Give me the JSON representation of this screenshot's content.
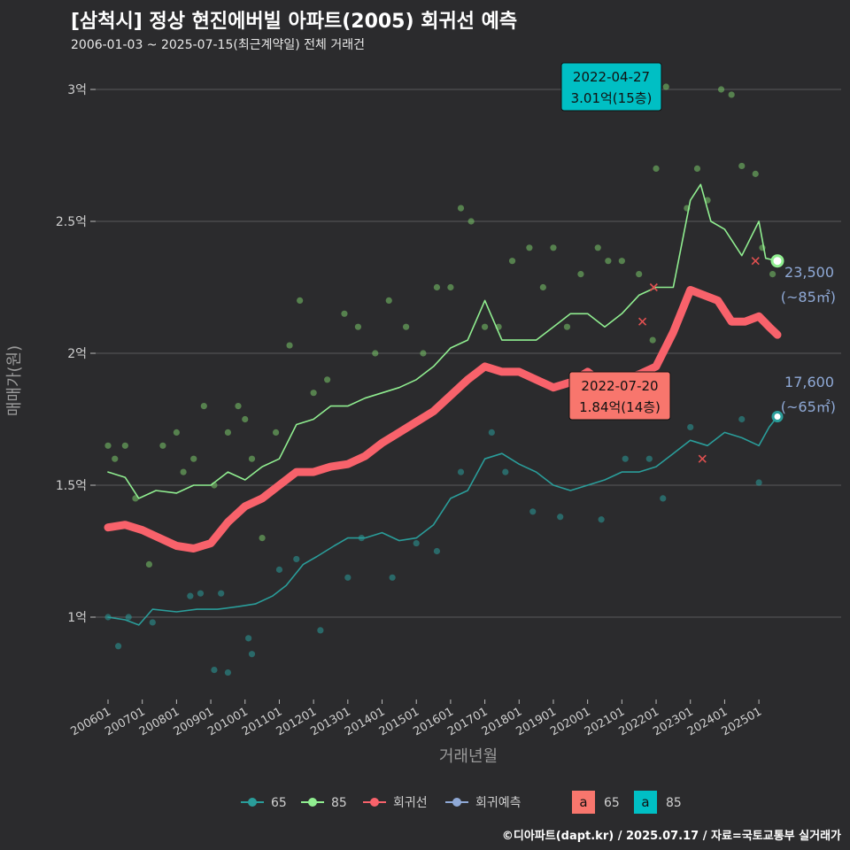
{
  "title": "[삼척시] 정상 현진에버빌 아파트(2005) 회귀선 예측",
  "subtitle": "2006-01-03 ~ 2025-07-15(최근계약일) 전체 거래건",
  "credit": "©디아파트(dapt.kr) / 2025.07.17 / 자료=국토교통부 실거래가",
  "colors": {
    "background": "#2b2b2d",
    "grid": "#5a5a5c",
    "text": "#cfcfcf",
    "teal": "#2a9d9a",
    "green": "#90ee90",
    "green_point": "#7ac86a",
    "red": "#f8626b",
    "blue": "#8fa9d6",
    "cyan_label": "#00bfc4",
    "salmon_label": "#f8766d"
  },
  "chart_data": {
    "type": "line",
    "xlabel": "거래년월",
    "ylabel": "매매가(원)",
    "x_range": [
      "2006-01",
      "2025-07"
    ],
    "ylim": [
      0.75,
      3.1
    ],
    "x_ticks": [
      "200601",
      "200701",
      "200801",
      "200901",
      "201001",
      "201101",
      "201201",
      "201301",
      "201401",
      "201501",
      "201601",
      "201701",
      "201801",
      "201901",
      "202001",
      "202101",
      "202201",
      "202301",
      "202401",
      "202501"
    ],
    "y_ticks": [
      {
        "value": 1,
        "label": "1억"
      },
      {
        "value": 1.5,
        "label": "1.5억"
      },
      {
        "value": 2,
        "label": "2억"
      },
      {
        "value": 2.5,
        "label": "2.5억"
      },
      {
        "value": 3,
        "label": "3억"
      }
    ],
    "grid": true,
    "series": [
      {
        "name": "65",
        "color": "#2a9d9a",
        "points": [
          [
            2006.0,
            1.0
          ],
          [
            2006.5,
            0.99
          ],
          [
            2006.9,
            0.97
          ],
          [
            2007.3,
            1.03
          ],
          [
            2008.0,
            1.02
          ],
          [
            2008.6,
            1.03
          ],
          [
            2009.2,
            1.03
          ],
          [
            2009.8,
            1.04
          ],
          [
            2010.3,
            1.05
          ],
          [
            2010.8,
            1.08
          ],
          [
            2011.2,
            1.12
          ],
          [
            2011.7,
            1.2
          ],
          [
            2012.1,
            1.23
          ],
          [
            2012.6,
            1.27
          ],
          [
            2013.0,
            1.3
          ],
          [
            2013.5,
            1.3
          ],
          [
            2014.0,
            1.32
          ],
          [
            2014.5,
            1.29
          ],
          [
            2015.0,
            1.3
          ],
          [
            2015.5,
            1.35
          ],
          [
            2016.0,
            1.45
          ],
          [
            2016.5,
            1.48
          ],
          [
            2017.0,
            1.6
          ],
          [
            2017.5,
            1.62
          ],
          [
            2018.0,
            1.58
          ],
          [
            2018.5,
            1.55
          ],
          [
            2019.0,
            1.5
          ],
          [
            2019.5,
            1.48
          ],
          [
            2020.0,
            1.5
          ],
          [
            2020.5,
            1.52
          ],
          [
            2021.0,
            1.55
          ],
          [
            2021.5,
            1.55
          ],
          [
            2022.0,
            1.57
          ],
          [
            2022.5,
            1.62
          ],
          [
            2023.0,
            1.67
          ],
          [
            2023.5,
            1.65
          ],
          [
            2024.0,
            1.7
          ],
          [
            2024.5,
            1.68
          ],
          [
            2025.0,
            1.65
          ],
          [
            2025.3,
            1.72
          ],
          [
            2025.54,
            1.76
          ]
        ]
      },
      {
        "name": "85",
        "color": "#90ee90",
        "points": [
          [
            2006.0,
            1.55
          ],
          [
            2006.5,
            1.53
          ],
          [
            2006.9,
            1.45
          ],
          [
            2007.4,
            1.48
          ],
          [
            2008.0,
            1.47
          ],
          [
            2008.5,
            1.5
          ],
          [
            2009.0,
            1.5
          ],
          [
            2009.5,
            1.55
          ],
          [
            2010.0,
            1.52
          ],
          [
            2010.5,
            1.57
          ],
          [
            2011.0,
            1.6
          ],
          [
            2011.5,
            1.73
          ],
          [
            2012.0,
            1.75
          ],
          [
            2012.5,
            1.8
          ],
          [
            2013.0,
            1.8
          ],
          [
            2013.5,
            1.83
          ],
          [
            2014.0,
            1.85
          ],
          [
            2014.5,
            1.87
          ],
          [
            2015.0,
            1.9
          ],
          [
            2015.5,
            1.95
          ],
          [
            2016.0,
            2.02
          ],
          [
            2016.5,
            2.05
          ],
          [
            2017.0,
            2.2
          ],
          [
            2017.5,
            2.05
          ],
          [
            2018.0,
            2.05
          ],
          [
            2018.5,
            2.05
          ],
          [
            2019.0,
            2.1
          ],
          [
            2019.5,
            2.15
          ],
          [
            2020.0,
            2.15
          ],
          [
            2020.5,
            2.1
          ],
          [
            2021.0,
            2.15
          ],
          [
            2021.5,
            2.22
          ],
          [
            2022.0,
            2.25
          ],
          [
            2022.5,
            2.25
          ],
          [
            2023.0,
            2.58
          ],
          [
            2023.3,
            2.64
          ],
          [
            2023.6,
            2.5
          ],
          [
            2024.0,
            2.47
          ],
          [
            2024.5,
            2.37
          ],
          [
            2025.0,
            2.5
          ],
          [
            2025.2,
            2.36
          ],
          [
            2025.54,
            2.35
          ]
        ]
      },
      {
        "name": "회귀선",
        "color": "#f8626b",
        "points": [
          [
            2006.0,
            1.34
          ],
          [
            2006.5,
            1.35
          ],
          [
            2007.0,
            1.33
          ],
          [
            2007.5,
            1.3
          ],
          [
            2008.0,
            1.27
          ],
          [
            2008.5,
            1.26
          ],
          [
            2009.0,
            1.28
          ],
          [
            2009.5,
            1.36
          ],
          [
            2010.0,
            1.42
          ],
          [
            2010.5,
            1.45
          ],
          [
            2011.0,
            1.5
          ],
          [
            2011.5,
            1.55
          ],
          [
            2012.0,
            1.55
          ],
          [
            2012.5,
            1.57
          ],
          [
            2013.0,
            1.58
          ],
          [
            2013.5,
            1.61
          ],
          [
            2014.0,
            1.66
          ],
          [
            2014.5,
            1.7
          ],
          [
            2015.0,
            1.74
          ],
          [
            2015.5,
            1.78
          ],
          [
            2016.0,
            1.84
          ],
          [
            2016.5,
            1.9
          ],
          [
            2017.0,
            1.95
          ],
          [
            2017.5,
            1.93
          ],
          [
            2018.0,
            1.93
          ],
          [
            2018.5,
            1.9
          ],
          [
            2019.0,
            1.87
          ],
          [
            2019.5,
            1.89
          ],
          [
            2020.0,
            1.93
          ],
          [
            2020.5,
            1.88
          ],
          [
            2021.0,
            1.9
          ],
          [
            2021.5,
            1.92
          ],
          [
            2022.0,
            1.95
          ],
          [
            2022.5,
            2.08
          ],
          [
            2023.0,
            2.24
          ],
          [
            2023.4,
            2.22
          ],
          [
            2023.8,
            2.2
          ],
          [
            2024.2,
            2.12
          ],
          [
            2024.6,
            2.12
          ],
          [
            2025.0,
            2.14
          ],
          [
            2025.3,
            2.1
          ],
          [
            2025.54,
            2.07
          ]
        ]
      }
    ],
    "scatter_65": [
      [
        2006.0,
        1.0
      ],
      [
        2006.3,
        0.89
      ],
      [
        2006.6,
        1.0
      ],
      [
        2007.3,
        0.98
      ],
      [
        2008.4,
        1.08
      ],
      [
        2008.7,
        1.09
      ],
      [
        2009.1,
        0.8
      ],
      [
        2009.3,
        1.09
      ],
      [
        2009.5,
        0.79
      ],
      [
        2010.1,
        0.92
      ],
      [
        2010.2,
        0.86
      ],
      [
        2011.0,
        1.18
      ],
      [
        2011.5,
        1.22
      ],
      [
        2012.2,
        0.95
      ],
      [
        2013.0,
        1.15
      ],
      [
        2013.4,
        1.3
      ],
      [
        2014.3,
        1.15
      ],
      [
        2015.0,
        1.28
      ],
      [
        2015.6,
        1.25
      ],
      [
        2016.3,
        1.55
      ],
      [
        2017.2,
        1.7
      ],
      [
        2017.6,
        1.55
      ],
      [
        2018.4,
        1.4
      ],
      [
        2019.2,
        1.38
      ],
      [
        2020.4,
        1.37
      ],
      [
        2021.1,
        1.6
      ],
      [
        2021.8,
        1.6
      ],
      [
        2022.2,
        1.45
      ],
      [
        2023.0,
        1.72
      ],
      [
        2024.5,
        1.75
      ],
      [
        2025.0,
        1.51
      ]
    ],
    "scatter_85": [
      [
        2006.0,
        1.65
      ],
      [
        2006.2,
        1.6
      ],
      [
        2006.5,
        1.65
      ],
      [
        2006.8,
        1.45
      ],
      [
        2007.2,
        1.2
      ],
      [
        2007.6,
        1.65
      ],
      [
        2008.0,
        1.7
      ],
      [
        2008.2,
        1.55
      ],
      [
        2008.5,
        1.6
      ],
      [
        2008.8,
        1.8
      ],
      [
        2009.1,
        1.5
      ],
      [
        2009.5,
        1.7
      ],
      [
        2009.8,
        1.8
      ],
      [
        2010.0,
        1.75
      ],
      [
        2010.2,
        1.6
      ],
      [
        2010.5,
        1.3
      ],
      [
        2010.9,
        1.7
      ],
      [
        2011.3,
        2.03
      ],
      [
        2011.6,
        2.2
      ],
      [
        2012.0,
        1.85
      ],
      [
        2012.4,
        1.9
      ],
      [
        2012.9,
        2.15
      ],
      [
        2013.3,
        2.1
      ],
      [
        2013.8,
        2.0
      ],
      [
        2014.2,
        2.2
      ],
      [
        2014.7,
        2.1
      ],
      [
        2015.2,
        2.0
      ],
      [
        2015.6,
        2.25
      ],
      [
        2016.0,
        2.25
      ],
      [
        2016.3,
        2.55
      ],
      [
        2016.6,
        2.5
      ],
      [
        2017.0,
        2.1
      ],
      [
        2017.4,
        2.1
      ],
      [
        2017.8,
        2.35
      ],
      [
        2018.3,
        2.4
      ],
      [
        2018.7,
        2.25
      ],
      [
        2019.0,
        2.4
      ],
      [
        2019.4,
        2.1
      ],
      [
        2019.8,
        2.3
      ],
      [
        2020.3,
        2.4
      ],
      [
        2020.6,
        2.35
      ],
      [
        2021.0,
        2.35
      ],
      [
        2021.5,
        2.3
      ],
      [
        2021.9,
        2.05
      ],
      [
        2022.0,
        2.7
      ],
      [
        2022.29,
        3.01
      ],
      [
        2022.9,
        2.55
      ],
      [
        2023.2,
        2.7
      ],
      [
        2023.5,
        2.58
      ],
      [
        2023.9,
        3.0
      ],
      [
        2024.2,
        2.98
      ],
      [
        2024.5,
        2.71
      ],
      [
        2024.9,
        2.68
      ],
      [
        2025.1,
        2.4
      ],
      [
        2025.4,
        2.3
      ]
    ],
    "annotations": [
      {
        "name": "max",
        "date": "2022-04-27",
        "text": "3.01억(15층)",
        "x": 2022.32,
        "y": 3.01,
        "color": "#00bfc4"
      },
      {
        "name": "latest",
        "date": "2022-07-20",
        "text": "1.84억(14층)",
        "x": 2022.55,
        "y": 1.84,
        "color": "#f8766d"
      }
    ],
    "end_labels": [
      {
        "series": "85",
        "value": "23,500",
        "area": "(~85㎡)",
        "x": 2025.54,
        "y": 2.35
      },
      {
        "series": "65",
        "value": "17,600",
        "area": "(~65㎡)",
        "x": 2025.54,
        "y": 1.76
      }
    ],
    "legend": {
      "placement": "bottom",
      "items": [
        {
          "label": "65",
          "color": "#2a9d9a"
        },
        {
          "label": "85",
          "color": "#90ee90"
        },
        {
          "label": "회귀선",
          "color": "#f8626b"
        },
        {
          "label": "회귀예측",
          "color": "#8fa9d6"
        }
      ],
      "fill_items": [
        {
          "label": "65",
          "color": "#f8766d"
        },
        {
          "label": "85",
          "color": "#00bfc4"
        }
      ]
    }
  }
}
